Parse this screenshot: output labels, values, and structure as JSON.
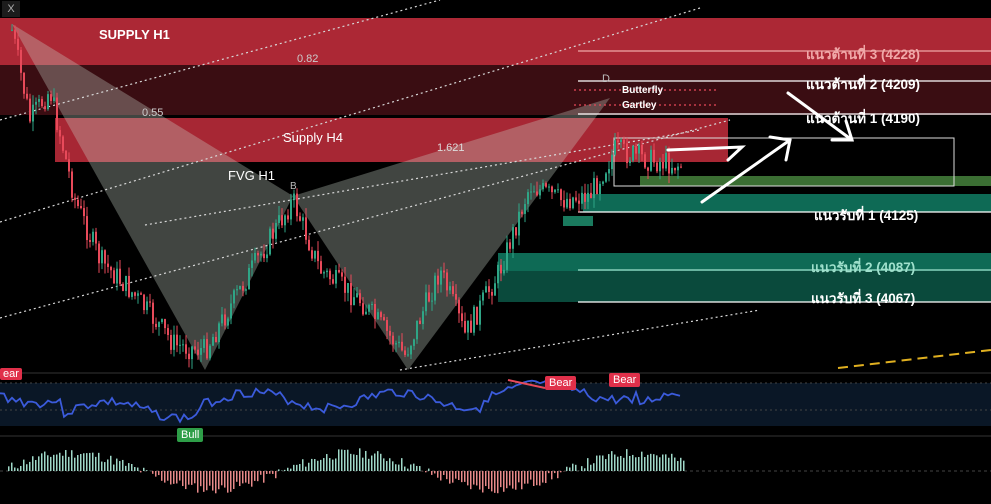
{
  "window": {
    "close_glyph": "X"
  },
  "zones": {
    "supply_h1": "SUPPLY H1",
    "supply_h4": "Supply H4",
    "fvg_h1": "FVG H1"
  },
  "fib": {
    "f082": "0.82",
    "f055": "0.55",
    "f1621": "1.621"
  },
  "pattern": {
    "point_d": "D",
    "point_b": "B",
    "butterfly": "Butterfly",
    "gartley": "Gartley"
  },
  "levels": {
    "resistance": [
      {
        "label": "แนวต้านที่ 3 (4228)",
        "color": "#f0a8a8"
      },
      {
        "label": "แนวต้านที่ 2 (4209)",
        "color": "#ffffff"
      },
      {
        "label": "แนวต้านที่ 1 (4190)",
        "color": "#ffffff"
      }
    ],
    "support": [
      {
        "label": "แนวรับที่ 1 (4125)",
        "color": "#ffffff"
      },
      {
        "label": "แนวรับที่ 2 (4087)",
        "color": "#9fe0cc"
      },
      {
        "label": "แนวรับที่ 3 (4067)",
        "color": "#ffffff"
      }
    ]
  },
  "indicator": {
    "bear_1": "Bear",
    "bear_2": "Bear",
    "bear_left": "ear",
    "bull": "Bull"
  },
  "colors": {
    "supply": "#c0323f",
    "supply_dark": "#5a1219",
    "demand": "#0d6b55",
    "demand_light": "#1e7a5a",
    "fvg_green": "#3a6b3a",
    "rsi_line": "#3b5bdb",
    "bear_badge": "#e0304a",
    "bull_badge": "#2e9e48",
    "candle_up": "#2fa586",
    "candle_down": "#e84a5a",
    "dashed_yellow": "#e0b020"
  }
}
